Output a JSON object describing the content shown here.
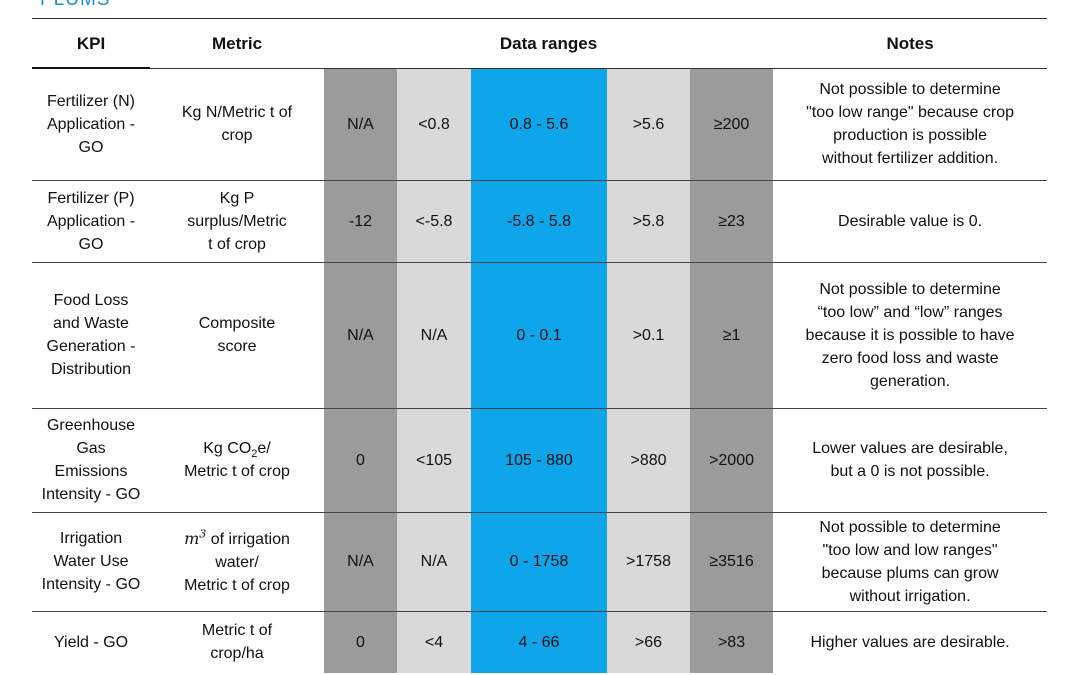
{
  "page_title": "PLUMS",
  "table": {
    "headers": {
      "kpi": "KPI",
      "metric": "Metric",
      "ranges": "Data ranges",
      "notes": "Notes"
    },
    "colors": {
      "too_low_or_too_high": "#9b9b9b",
      "low_or_high": "#d9d9d9",
      "desired": "#0ea5ea"
    },
    "rows": [
      {
        "kpi": [
          "Fertilizer (N)",
          "Application -",
          "GO"
        ],
        "metric": [
          "Kg N/Metric t of",
          "crop"
        ],
        "ranges": [
          "N/A",
          "<0.8",
          "0.8 - 5.6",
          ">5.6",
          "≥200"
        ],
        "notes": [
          "Not possible to determine",
          "\"too low range\" because crop",
          "production is possible",
          "without fertilizer addition."
        ]
      },
      {
        "kpi": [
          "Fertilizer (P)",
          "Application -",
          "GO"
        ],
        "metric": [
          "Kg P",
          "surplus/Metric",
          "t of crop"
        ],
        "ranges": [
          "-12",
          "<-5.8",
          "-5.8 - 5.8",
          ">5.8",
          "≥23"
        ],
        "notes": [
          "Desirable value is 0."
        ]
      },
      {
        "kpi": [
          "Food Loss",
          "and Waste",
          "Generation -",
          "Distribution"
        ],
        "metric": [
          "Composite",
          "score"
        ],
        "ranges": [
          "N/A",
          "N/A",
          "0 - 0.1",
          ">0.1",
          "≥1"
        ],
        "notes": [
          "Not possible to determine",
          "“too low” and “low” ranges",
          "because it is possible to have",
          "zero food loss and waste",
          "generation."
        ]
      },
      {
        "kpi": [
          "Greenhouse",
          "Gas",
          "Emissions",
          "Intensity - GO"
        ],
        "metric_prefix": "Kg CO",
        "metric_sub": "2",
        "metric_suffix": "e/",
        "metric_line2": "Metric t of crop",
        "ranges": [
          "0",
          "<105",
          "105 - 880",
          ">880",
          ">2000"
        ],
        "notes": [
          "Lower values are desirable,",
          "but a 0 is not possible."
        ]
      },
      {
        "kpi": [
          "Irrigation",
          "Water Use",
          "Intensity - GO"
        ],
        "metric_symbol": "m",
        "metric_sup": "3",
        "metric_suffix": " of irrigation",
        "metric_lines": [
          "water/",
          "Metric t of crop"
        ],
        "ranges": [
          "N/A",
          "N/A",
          "0 - 1758",
          ">1758",
          "≥3516"
        ],
        "notes": [
          "Not possible to determine",
          "\"too low and low ranges\"",
          "because plums can grow",
          "without irrigation."
        ]
      },
      {
        "kpi": [
          "Yield - GO"
        ],
        "metric": [
          "Metric t of",
          "crop/ha"
        ],
        "ranges": [
          "0",
          "<4",
          "4 - 66",
          ">66",
          ">83"
        ],
        "notes": [
          "Higher values are desirable."
        ]
      }
    ]
  }
}
